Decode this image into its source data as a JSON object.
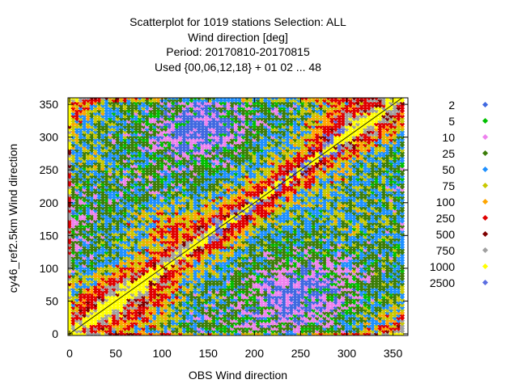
{
  "title_lines": [
    "Scatterplot for 1019 stations Selection: ALL",
    "Wind direction [deg]",
    "Period: 20170810-20170815",
    "Used {00,06,12,18} + 01 02 ... 48"
  ],
  "colors": {
    "2": "#4169e1",
    "5": "#00c000",
    "10": "#ee82ee",
    "25": "#3c7d09",
    "50": "#1e90ff",
    "75": "#c8c800",
    "100": "#ffa500",
    "250": "#e00000",
    "500": "#7f0000",
    "750": "#a0a0a0",
    "1000": "#ffff00",
    "2500": "#5b6ee1"
  },
  "chart_data": {
    "type": "heatmap",
    "xlabel": "OBS Wind direction",
    "ylabel": "cy46_ref2.5km Wind direction",
    "xlim": [
      0,
      360
    ],
    "ylim": [
      0,
      360
    ],
    "xticks": [
      0,
      50,
      100,
      150,
      200,
      250,
      300,
      350
    ],
    "yticks": [
      0,
      50,
      100,
      150,
      200,
      250,
      300,
      350
    ],
    "legend": {
      "placement": "right",
      "entries": [
        "2",
        "5",
        "10",
        "25",
        "50",
        "75",
        "100",
        "250",
        "500",
        "750",
        "1000",
        "2500"
      ]
    },
    "reference_line": "x = y"
  }
}
